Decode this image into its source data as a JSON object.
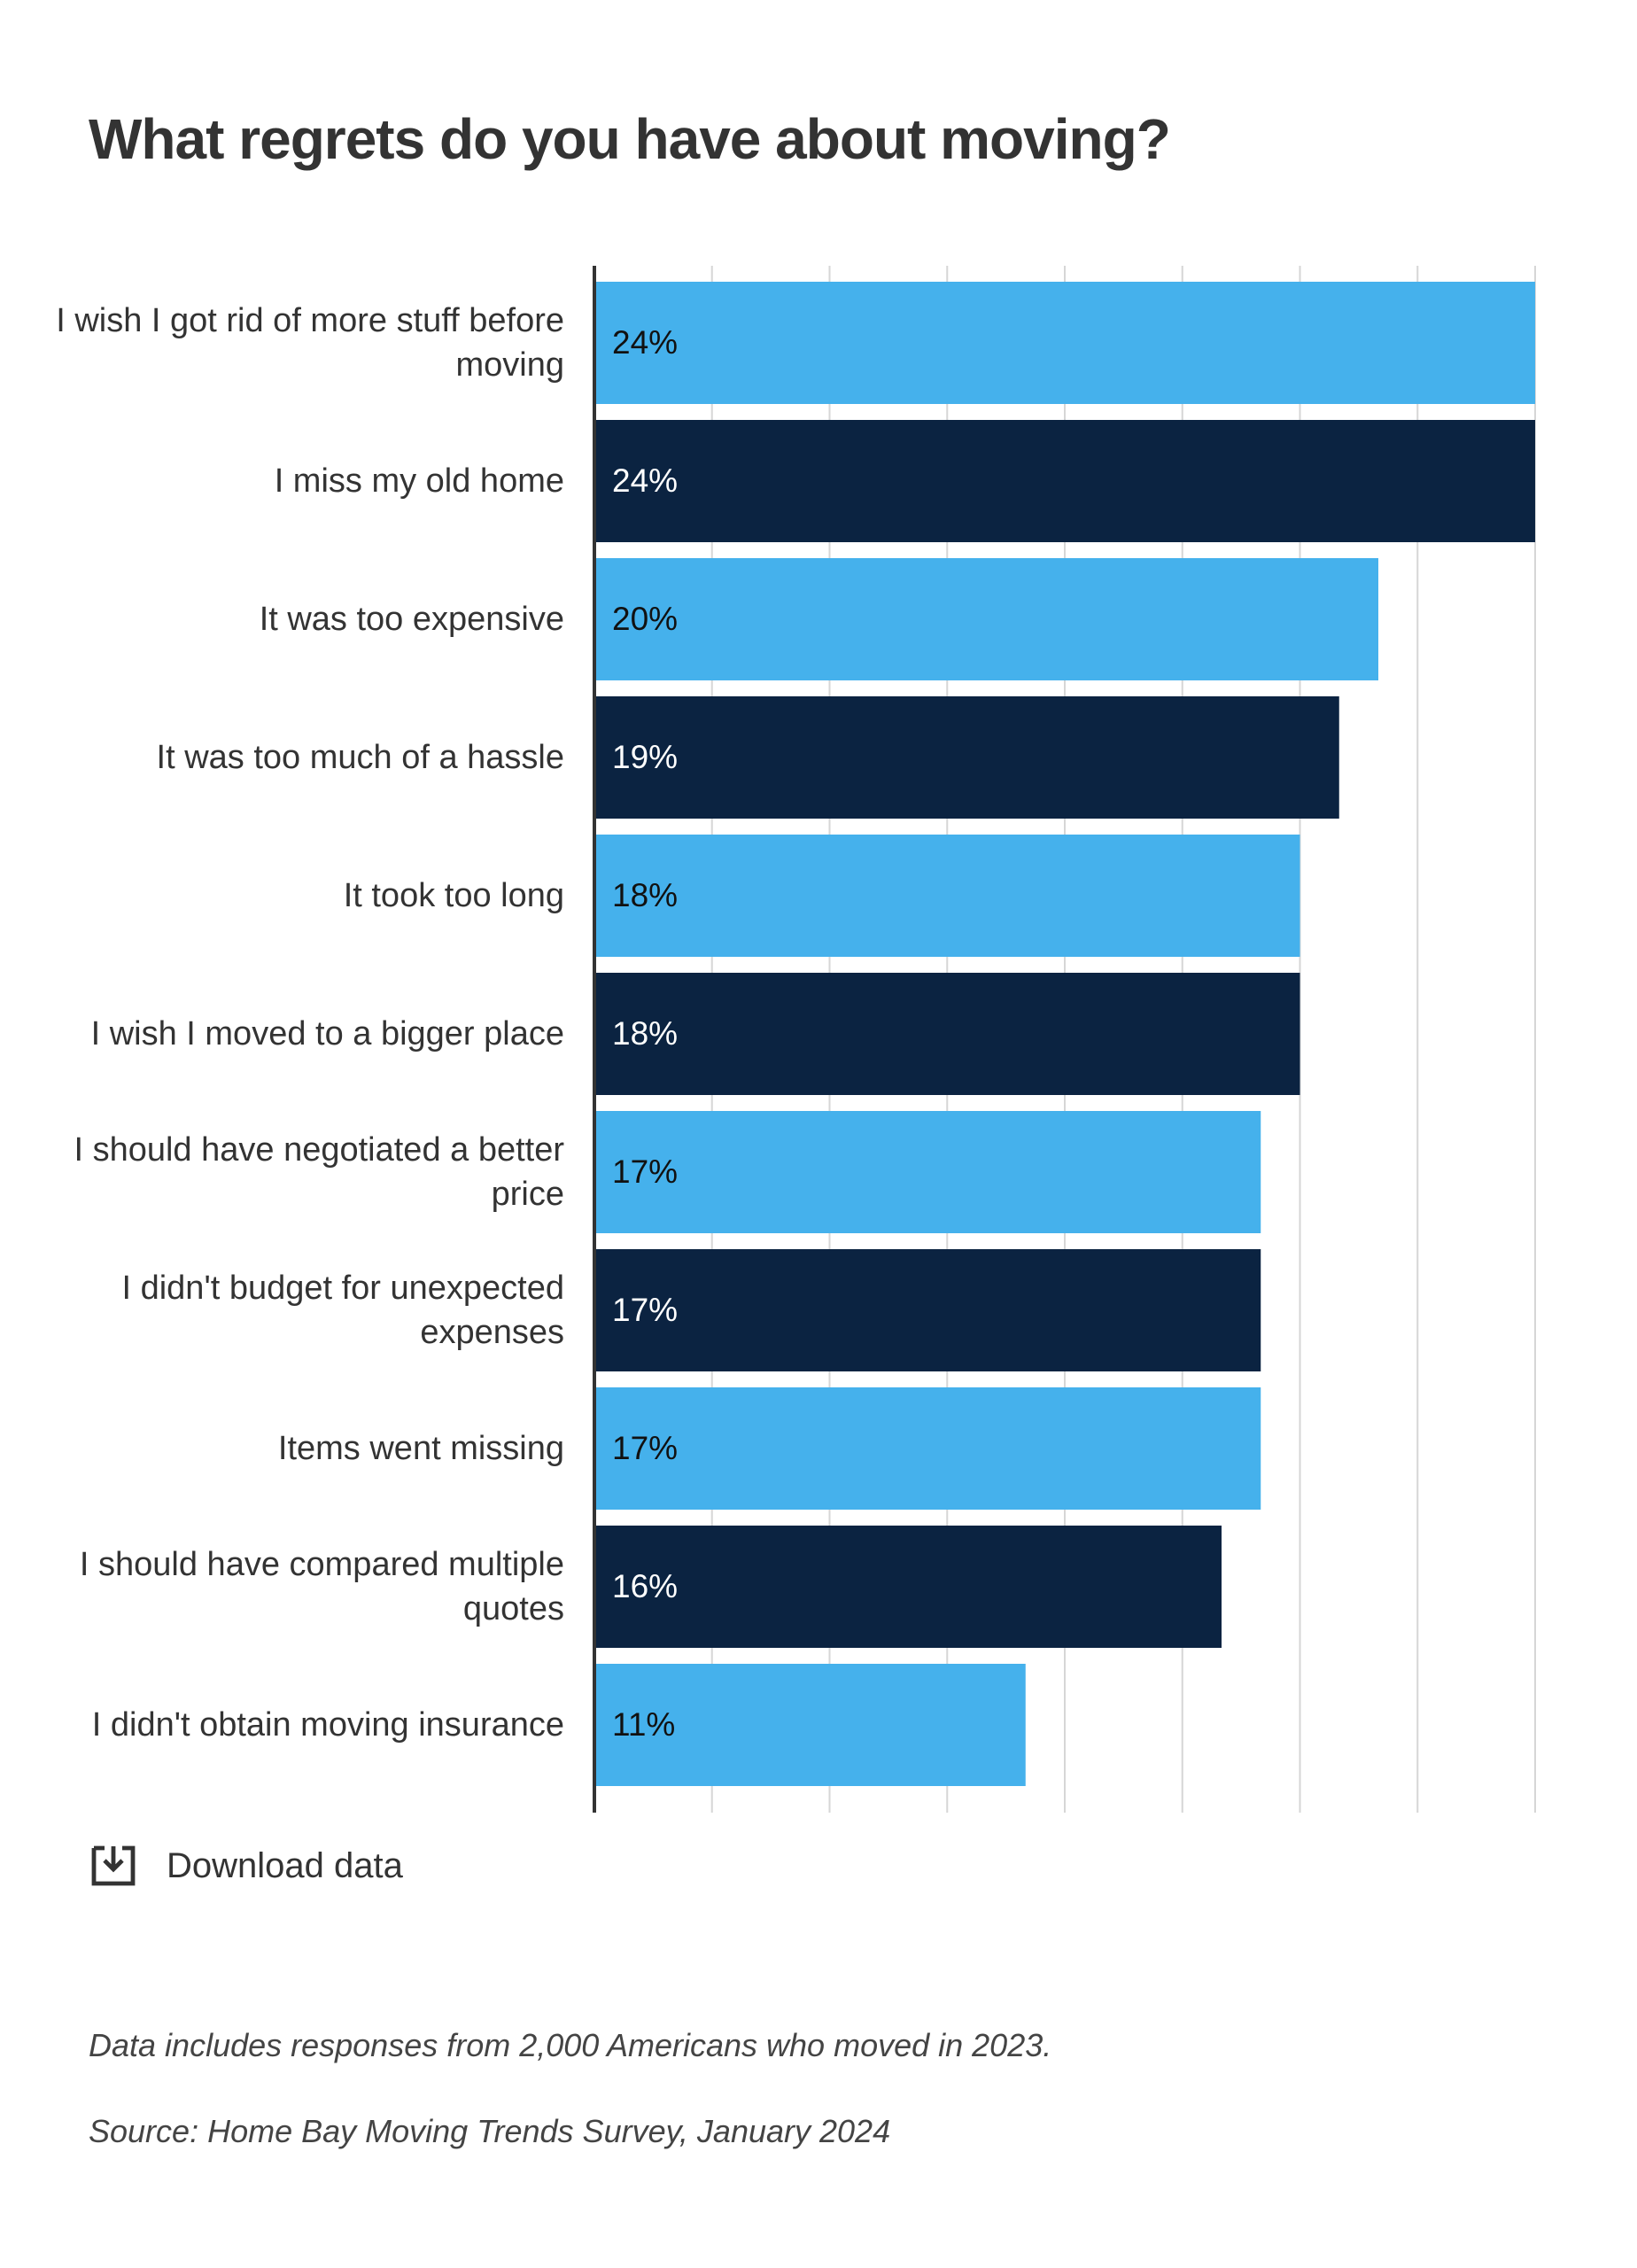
{
  "chart_data": {
    "type": "barh",
    "title": "What regrets do you have about moving?",
    "categories": [
      "I wish I got rid of more stuff before moving",
      "I miss my old home",
      "It was too expensive",
      "It was too much of a hassle",
      "It took too long",
      "I wish I moved to a bigger place",
      "I should have negotiated a better price",
      "I didn't budget for unexpected expenses",
      "Items went missing",
      "I should have compared multiple quotes",
      "I didn't obtain moving insurance"
    ],
    "values": [
      24,
      24,
      20,
      19,
      18,
      18,
      17,
      17,
      17,
      16,
      11
    ],
    "value_labels": [
      "24%",
      "24%",
      "20%",
      "19%",
      "18%",
      "18%",
      "17%",
      "17%",
      "17%",
      "16%",
      "11%"
    ],
    "colors": [
      "#45b1ec",
      "#0b2341",
      "#45b1ec",
      "#0b2341",
      "#45b1ec",
      "#0b2341",
      "#45b1ec",
      "#0b2341",
      "#45b1ec",
      "#0b2341",
      "#45b1ec"
    ],
    "xlim": [
      0,
      24
    ],
    "xticks": [
      0,
      3,
      6,
      9,
      12,
      15,
      18,
      21,
      24
    ],
    "grid": true,
    "note": "Data includes responses from 2,000 Americans who moved in 2023.",
    "source": "Source: Home Bay Moving Trends Survey, January 2024"
  },
  "download_label": "Download data"
}
